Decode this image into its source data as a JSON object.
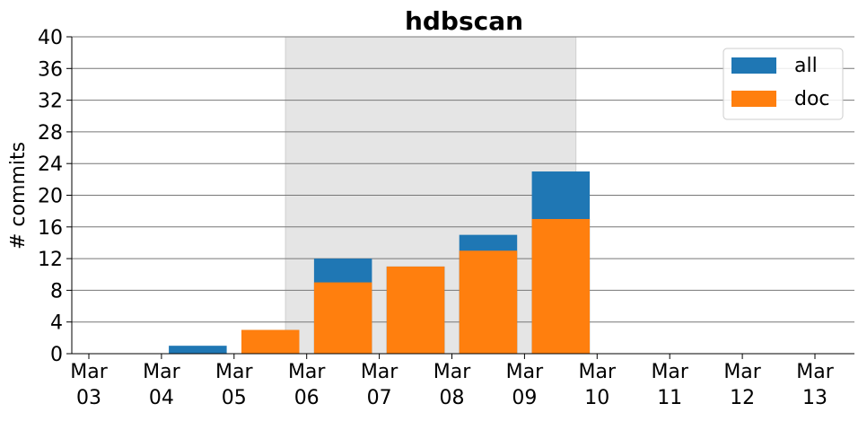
{
  "chart_data": {
    "type": "bar",
    "title": "hdbscan",
    "xlabel": "",
    "ylabel": "# commits",
    "ylim": [
      0,
      40
    ],
    "yticks": [
      0,
      4,
      8,
      12,
      16,
      20,
      24,
      28,
      32,
      36,
      40
    ],
    "categories": [
      {
        "month": "Mar",
        "day": "03"
      },
      {
        "month": "Mar",
        "day": "04"
      },
      {
        "month": "Mar",
        "day": "05"
      },
      {
        "month": "Mar",
        "day": "06"
      },
      {
        "month": "Mar",
        "day": "07"
      },
      {
        "month": "Mar",
        "day": "08"
      },
      {
        "month": "Mar",
        "day": "09"
      },
      {
        "month": "Mar",
        "day": "10"
      },
      {
        "month": "Mar",
        "day": "11"
      },
      {
        "month": "Mar",
        "day": "12"
      },
      {
        "month": "Mar",
        "day": "13"
      }
    ],
    "series": [
      {
        "name": "all",
        "color": "#1f77b4",
        "values": [
          0,
          0,
          1,
          3,
          12,
          11,
          15,
          23,
          0,
          0,
          0
        ]
      },
      {
        "name": "doc",
        "color": "#ff7f0e",
        "values": [
          0,
          0,
          0,
          3,
          9,
          11,
          13,
          17,
          0,
          0,
          0
        ]
      }
    ],
    "highlight_span": {
      "from": "2019-03-05T17:00",
      "to": "2019-03-09T17:00",
      "color": "#e5e5e5"
    },
    "bars_offset_hours": -12,
    "grid": "horizontal",
    "legend_position": "top-right"
  }
}
